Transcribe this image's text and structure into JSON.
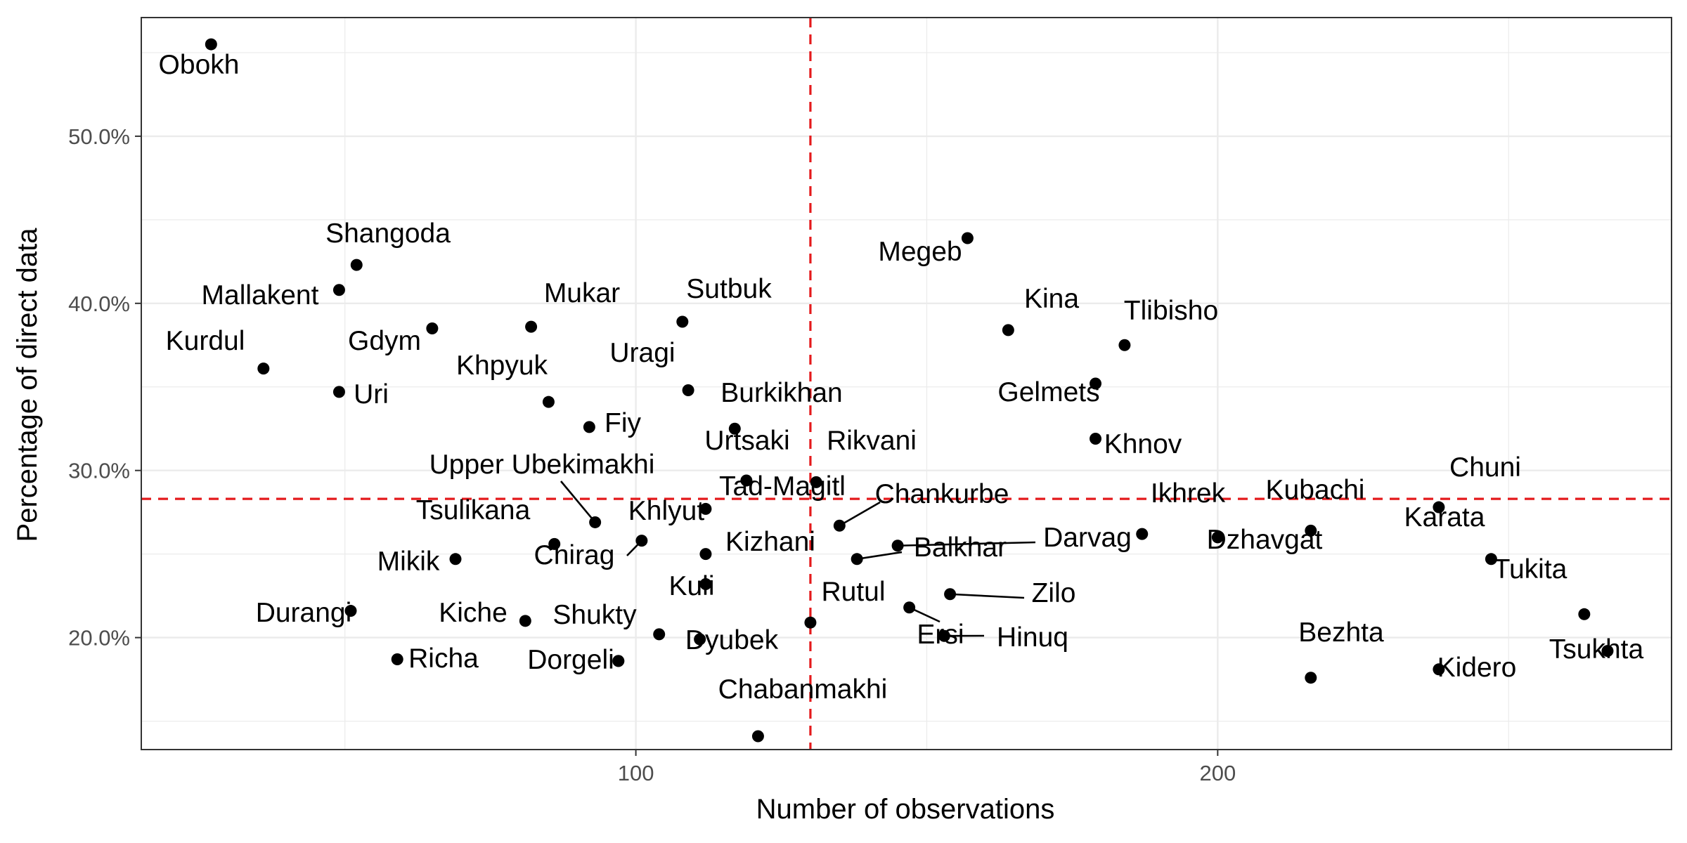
{
  "chart_data": {
    "type": "scatter",
    "title": "",
    "xlabel": "Number of observations",
    "ylabel": "Percentage of direct data",
    "xlim": [
      15,
      278
    ],
    "ylim": [
      0.133,
      0.571
    ],
    "x_ticks": [
      100,
      200
    ],
    "x_tick_labels": [
      "100",
      "200"
    ],
    "y_ticks": [
      0.2,
      0.3,
      0.4,
      0.5
    ],
    "y_tick_labels": [
      "20.0%",
      "30.0%",
      "40.0%",
      "50.0%"
    ],
    "grid": true,
    "legend": "none",
    "colors": {
      "point": "#000000",
      "reference_line": "#e41a1c",
      "grid": "#ebebeb",
      "panel_border": "#333333"
    },
    "reference_lines": {
      "vertical_x": 130,
      "horizontal_y": 0.283
    },
    "points": [
      {
        "label": "Obokh",
        "x": 27,
        "y": 0.555
      },
      {
        "label": "Shangoda",
        "x": 52,
        "y": 0.423
      },
      {
        "label": "Mallakent",
        "x": 49,
        "y": 0.408
      },
      {
        "label": "Gdym",
        "x": 65,
        "y": 0.385
      },
      {
        "label": "Mukar",
        "x": 82,
        "y": 0.386
      },
      {
        "label": "Sutbuk",
        "x": 108,
        "y": 0.389
      },
      {
        "label": "Kurdul",
        "x": 36,
        "y": 0.361
      },
      {
        "label": "Uri",
        "x": 49,
        "y": 0.347
      },
      {
        "label": "Khpyuk",
        "x": 85,
        "y": 0.341
      },
      {
        "label": "Uragi",
        "x": 109,
        "y": 0.348
      },
      {
        "label": "Fiy",
        "x": 92,
        "y": 0.326
      },
      {
        "label": "Burkikhan",
        "x": 117,
        "y": 0.325
      },
      {
        "label": "Urtsaki",
        "x": 119,
        "y": 0.294
      },
      {
        "label": "Rikvani",
        "x": 131,
        "y": 0.293
      },
      {
        "label": "Upper Ubekimakhi",
        "x": 93,
        "y": 0.269
      },
      {
        "label": "Tad-Magitl",
        "x": 112,
        "y": 0.277
      },
      {
        "label": "Chankurbe",
        "x": 135,
        "y": 0.267
      },
      {
        "label": "Tsulikana",
        "x": 86,
        "y": 0.256
      },
      {
        "label": "Khlyut",
        "x": 101,
        "y": 0.258
      },
      {
        "label": "Chirag",
        "x": 112,
        "y": 0.25
      },
      {
        "label": "Kizhani",
        "x": 112,
        "y": 0.232
      },
      {
        "label": "Mikik",
        "x": 69,
        "y": 0.247
      },
      {
        "label": "Darvag",
        "x": 145,
        "y": 0.255
      },
      {
        "label": "Balkhar",
        "x": 138,
        "y": 0.247
      },
      {
        "label": "Zilo",
        "x": 154,
        "y": 0.226
      },
      {
        "label": "Ersi",
        "x": 147,
        "y": 0.218
      },
      {
        "label": "Hinuq",
        "x": 153,
        "y": 0.201
      },
      {
        "label": "Durangi",
        "x": 51,
        "y": 0.216
      },
      {
        "label": "Kiche",
        "x": 81,
        "y": 0.21
      },
      {
        "label": "Kuli",
        "x": 104,
        "y": 0.202
      },
      {
        "label": "Shukty",
        "x": 97,
        "y": 0.186
      },
      {
        "label": "Dyubek",
        "x": 111,
        "y": 0.199
      },
      {
        "label": "Rutul",
        "x": 130,
        "y": 0.209
      },
      {
        "label": "Richa",
        "x": 59,
        "y": 0.187
      },
      {
        "label": "Dorgeli",
        "x": 97,
        "y": 0.186
      },
      {
        "label": "Chabanmakhi",
        "x": 121,
        "y": 0.141
      },
      {
        "label": "Megeb",
        "x": 157,
        "y": 0.439
      },
      {
        "label": "Kina",
        "x": 164,
        "y": 0.384
      },
      {
        "label": "Tlibisho",
        "x": 184,
        "y": 0.375
      },
      {
        "label": "Gelmets",
        "x": 179,
        "y": 0.352
      },
      {
        "label": "Khnov",
        "x": 179,
        "y": 0.319
      },
      {
        "label": "Ikhrek",
        "x": 187,
        "y": 0.262
      },
      {
        "label": "Dzhavgat",
        "x": 200,
        "y": 0.26
      },
      {
        "label": "Kubachi",
        "x": 216,
        "y": 0.264
      },
      {
        "label": "Chuni",
        "x": 238,
        "y": 0.278
      },
      {
        "label": "Karata",
        "x": 247,
        "y": 0.247
      },
      {
        "label": "Tukita",
        "x": 263,
        "y": 0.214
      },
      {
        "label": "Tsukhta",
        "x": 267,
        "y": 0.192
      },
      {
        "label": "Bezhta",
        "x": 216,
        "y": 0.176
      },
      {
        "label": "Kidero",
        "x": 238,
        "y": 0.181
      }
    ]
  }
}
